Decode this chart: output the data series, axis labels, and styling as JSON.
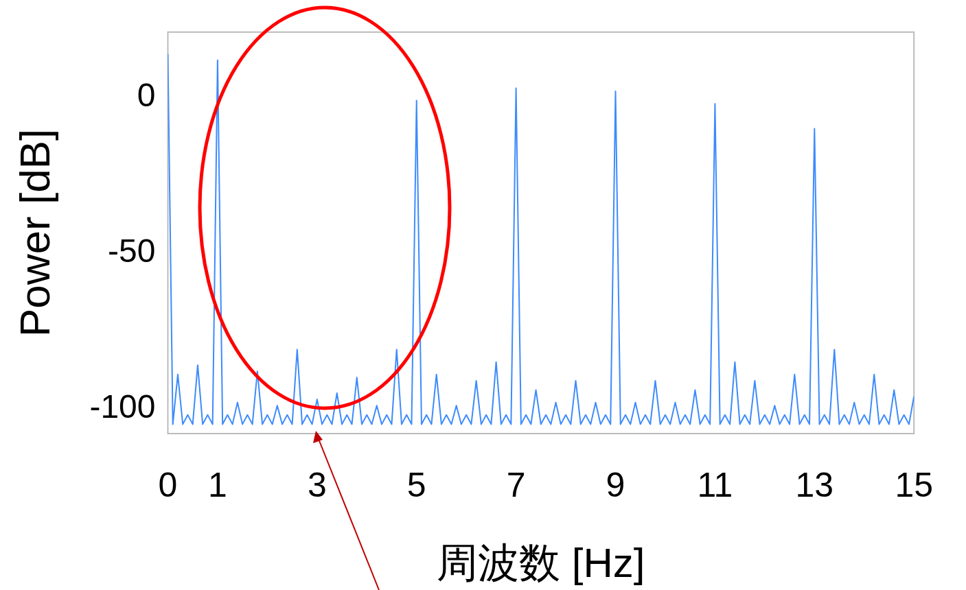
{
  "chart_data": {
    "type": "line",
    "xlabel": "周波数 [Hz]",
    "ylabel": "Power [dB]",
    "xlim": [
      0,
      15
    ],
    "ylim": [
      -108,
      21
    ],
    "xticks": [
      0,
      1,
      3,
      5,
      7,
      9,
      11,
      13,
      15
    ],
    "yticks": [
      -100,
      -50,
      0
    ],
    "marker": "none",
    "line_style": "solid",
    "legend": false,
    "series": [
      {
        "color": "#3d8bfd",
        "x": [
          0,
          0.1,
          0.2,
          0.3,
          0.4,
          0.5,
          0.6,
          0.7,
          0.8,
          0.9,
          1,
          1.1,
          1.2,
          1.3,
          1.4,
          1.5,
          1.6,
          1.7,
          1.8,
          1.9,
          2,
          2.1,
          2.2,
          2.3,
          2.4,
          2.5,
          2.6,
          2.7,
          2.8,
          2.9,
          3,
          3.1,
          3.2,
          3.3,
          3.4,
          3.5,
          3.6,
          3.7,
          3.8,
          3.9,
          4,
          4.1,
          4.2,
          4.3,
          4.4,
          4.5,
          4.6,
          4.7,
          4.8,
          4.9,
          5,
          5.1,
          5.2,
          5.3,
          5.4,
          5.5,
          5.6,
          5.7,
          5.8,
          5.9,
          6,
          6.1,
          6.2,
          6.3,
          6.4,
          6.5,
          6.6,
          6.7,
          6.8,
          6.9,
          7,
          7.1,
          7.2,
          7.3,
          7.4,
          7.5,
          7.6,
          7.7,
          7.8,
          7.9,
          8,
          8.1,
          8.2,
          8.3,
          8.4,
          8.5,
          8.6,
          8.7,
          8.8,
          8.9,
          9,
          9.1,
          9.2,
          9.3,
          9.4,
          9.5,
          9.6,
          9.7,
          9.8,
          9.9,
          10,
          10.1,
          10.2,
          10.3,
          10.4,
          10.5,
          10.6,
          10.7,
          10.8,
          10.9,
          11,
          11.1,
          11.2,
          11.3,
          11.4,
          11.5,
          11.6,
          11.7,
          11.8,
          11.9,
          12,
          12.1,
          12.2,
          12.3,
          12.4,
          12.5,
          12.6,
          12.7,
          12.8,
          12.9,
          13,
          13.1,
          13.2,
          13.3,
          13.4,
          13.5,
          13.6,
          13.7,
          13.8,
          13.9,
          14,
          14.1,
          14.2,
          14.3,
          14.4,
          14.5,
          14.6,
          14.7,
          14.8,
          14.9,
          15
        ],
        "values": [
          14,
          -105,
          -89,
          -105,
          -102,
          -105,
          -86,
          -105,
          -102,
          -105,
          12,
          -105,
          -102,
          -105,
          -98,
          -105,
          -102,
          -105,
          -88,
          -105,
          -102,
          -105,
          -99,
          -105,
          -102,
          -105,
          -81,
          -105,
          -102,
          -105,
          -97,
          -105,
          -102,
          -105,
          -95,
          -105,
          -102,
          -105,
          -90,
          -105,
          -102,
          -105,
          -99,
          -105,
          -102,
          -105,
          -81,
          -105,
          -102,
          -105,
          -1,
          -105,
          -102,
          -105,
          -89,
          -105,
          -102,
          -105,
          -99,
          -105,
          -102,
          -105,
          -91,
          -105,
          -102,
          -105,
          -85,
          -105,
          -102,
          -105,
          3,
          -105,
          -102,
          -105,
          -94,
          -105,
          -102,
          -105,
          -98,
          -105,
          -102,
          -105,
          -91,
          -105,
          -102,
          -105,
          -98,
          -105,
          -102,
          -105,
          2,
          -105,
          -102,
          -105,
          -98,
          -105,
          -102,
          -105,
          -91,
          -105,
          -102,
          -105,
          -98,
          -105,
          -102,
          -105,
          -94,
          -105,
          -102,
          -105,
          -2,
          -105,
          -102,
          -105,
          -85,
          -105,
          -102,
          -105,
          -91,
          -105,
          -102,
          -105,
          -99,
          -105,
          -102,
          -105,
          -89,
          -105,
          -102,
          -105,
          -10,
          -105,
          -102,
          -105,
          -81,
          -105,
          -102,
          -105,
          -98,
          -105,
          -102,
          -105,
          -89,
          -105,
          -102,
          -105,
          -94,
          -105,
          -102,
          -105,
          -96
        ]
      }
    ]
  }
}
